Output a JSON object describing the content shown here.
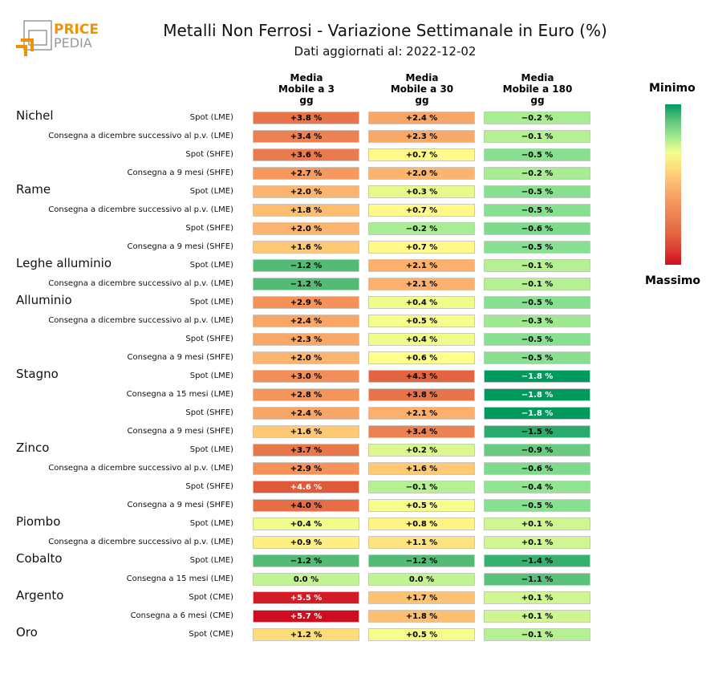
{
  "logo": {
    "text_top": "PRICE",
    "text_bottom": "PEDIA"
  },
  "chart_data": {
    "type": "heatmap",
    "title": "Metalli Non Ferrosi - Variazione Settimanale in Euro (%)",
    "subtitle": "Dati aggiornati al: 2022-12-02",
    "columns": [
      "Media\nMobile a 3\ngg",
      "Media\nMobile a 30\ngg",
      "Media\nMobile a 180\ngg"
    ],
    "legend": {
      "min_label": "Minimo",
      "max_label": "Massimo",
      "colors": {
        "min": "#009a5e",
        "mid": "#ffff8c",
        "max": "#d00d20"
      }
    },
    "unit": "%",
    "rows": [
      {
        "group": "Nichel",
        "label": "Spot (LME)",
        "values": [
          3.8,
          2.4,
          -0.2
        ]
      },
      {
        "group": "",
        "label": "Consegna a dicembre successivo al p.v. (LME)",
        "values": [
          3.4,
          2.3,
          -0.1
        ]
      },
      {
        "group": "",
        "label": "Spot (SHFE)",
        "values": [
          3.6,
          0.7,
          -0.5
        ]
      },
      {
        "group": "",
        "label": "Consegna a 9 mesi (SHFE)",
        "values": [
          2.7,
          2.0,
          -0.2
        ]
      },
      {
        "group": "Rame",
        "label": "Spot (LME)",
        "values": [
          2.0,
          0.3,
          -0.5
        ]
      },
      {
        "group": "",
        "label": "Consegna a dicembre successivo al p.v. (LME)",
        "values": [
          1.8,
          0.7,
          -0.5
        ]
      },
      {
        "group": "",
        "label": "Spot (SHFE)",
        "values": [
          2.0,
          -0.2,
          -0.6
        ]
      },
      {
        "group": "",
        "label": "Consegna a 9 mesi (SHFE)",
        "values": [
          1.6,
          0.7,
          -0.5
        ]
      },
      {
        "group": "Leghe alluminio",
        "label": "Spot (LME)",
        "values": [
          -1.2,
          2.1,
          -0.1
        ]
      },
      {
        "group": "",
        "label": "Consegna a dicembre successivo al p.v. (LME)",
        "values": [
          -1.2,
          2.1,
          -0.1
        ]
      },
      {
        "group": "Alluminio",
        "label": "Spot (LME)",
        "values": [
          2.9,
          0.4,
          -0.5
        ]
      },
      {
        "group": "",
        "label": "Consegna a dicembre successivo al p.v. (LME)",
        "values": [
          2.4,
          0.5,
          -0.3
        ]
      },
      {
        "group": "",
        "label": "Spot (SHFE)",
        "values": [
          2.3,
          0.4,
          -0.5
        ]
      },
      {
        "group": "",
        "label": "Consegna a 9 mesi (SHFE)",
        "values": [
          2.0,
          0.6,
          -0.5
        ]
      },
      {
        "group": "Stagno",
        "label": "Spot (LME)",
        "values": [
          3.0,
          4.3,
          -1.8
        ]
      },
      {
        "group": "",
        "label": "Consegna a 15 mesi (LME)",
        "values": [
          2.8,
          3.8,
          -1.8
        ]
      },
      {
        "group": "",
        "label": "Spot (SHFE)",
        "values": [
          2.4,
          2.1,
          -1.8
        ]
      },
      {
        "group": "",
        "label": "Consegna a 9 mesi (SHFE)",
        "values": [
          1.6,
          3.4,
          -1.5
        ]
      },
      {
        "group": "Zinco",
        "label": "Spot (LME)",
        "values": [
          3.7,
          0.2,
          -0.9
        ]
      },
      {
        "group": "",
        "label": "Consegna a dicembre successivo al p.v. (LME)",
        "values": [
          2.9,
          1.6,
          -0.6
        ]
      },
      {
        "group": "",
        "label": "Spot (SHFE)",
        "values": [
          4.6,
          -0.1,
          -0.4
        ]
      },
      {
        "group": "",
        "label": "Consegna a 9 mesi (SHFE)",
        "values": [
          4.0,
          0.5,
          -0.5
        ]
      },
      {
        "group": "Piombo",
        "label": "Spot (LME)",
        "values": [
          0.4,
          0.8,
          0.1
        ]
      },
      {
        "group": "",
        "label": "Consegna a dicembre successivo al p.v. (LME)",
        "values": [
          0.9,
          1.1,
          0.1
        ]
      },
      {
        "group": "Cobalto",
        "label": "Spot (LME)",
        "values": [
          -1.2,
          -1.2,
          -1.4
        ]
      },
      {
        "group": "",
        "label": "Consegna a 15 mesi (LME)",
        "values": [
          0.0,
          0.0,
          -1.1
        ]
      },
      {
        "group": "Argento",
        "label": "Spot (CME)",
        "values": [
          5.5,
          1.7,
          0.1
        ]
      },
      {
        "group": "",
        "label": "Consegna a 6 mesi (CME)",
        "values": [
          5.7,
          1.8,
          0.1
        ]
      },
      {
        "group": "Oro",
        "label": "Spot (CME)",
        "values": [
          1.2,
          0.5,
          -0.1
        ]
      }
    ]
  }
}
